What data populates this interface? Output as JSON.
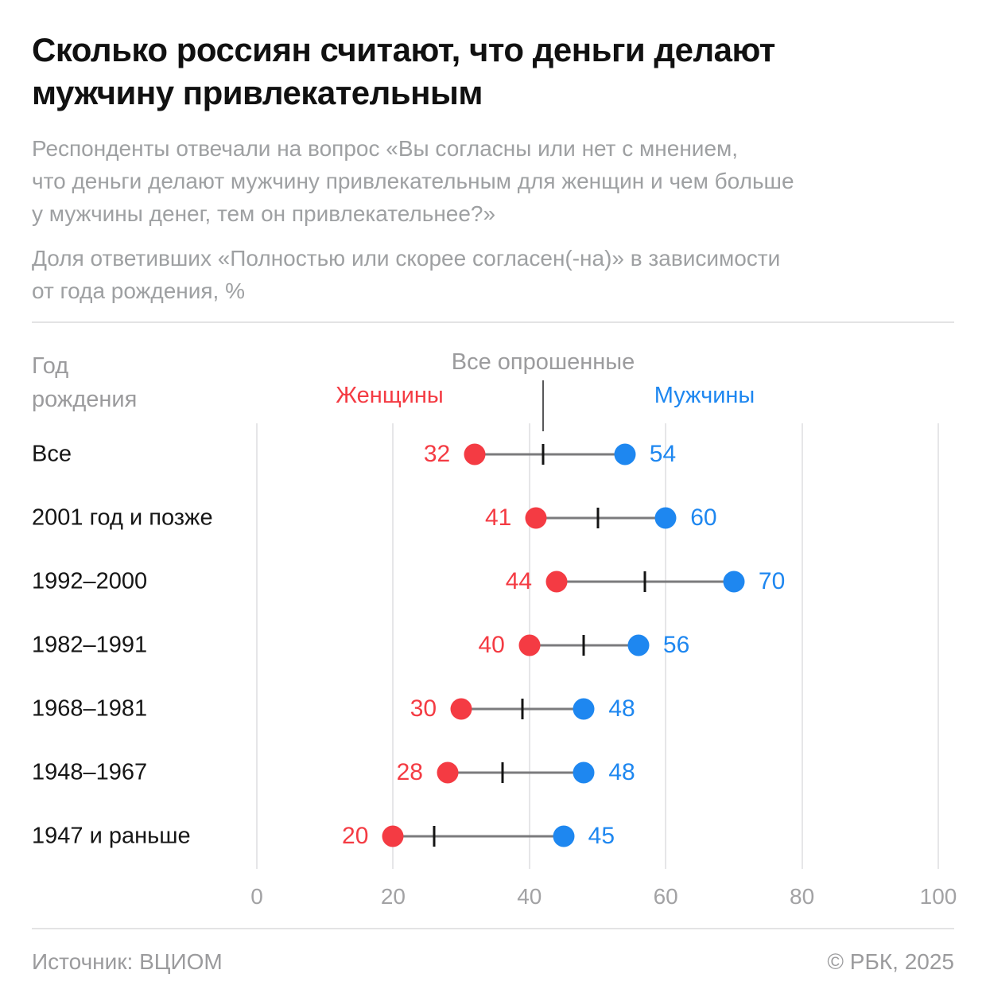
{
  "header": {
    "title": "Сколько россиян считают, что деньги делают мужчину привлекательным",
    "title_lines": [
      "Сколько россиян считают, что деньги делают",
      "мужчину привлекательным"
    ],
    "subtitle": "Респонденты отвечали на вопрос «Вы согласны или нет с мнением, что деньги делают мужчину привлекательным для женщин и чем больше у мужчины денег, тем он привлекательнее?»",
    "subtitle_lines": [
      "Респонденты отвечали на вопрос «Вы согласны или нет с мнением,",
      "что деньги делают мужчину привлекательным для женщин и чем больше",
      "у мужчины денег, тем он привлекательнее?»"
    ],
    "note": "Доля ответивших «Полностью или скорее согласен(-на)» в зависимости от года рождения, %",
    "note_lines": [
      "Доля ответивших «Полностью или скорее согласен(-на)» в зависимости",
      "от года рождения, %"
    ]
  },
  "chart_data": {
    "type": "dumbbell",
    "title": "Сколько россиян считают, что деньги делают мужчину привлекательным",
    "row_header": {
      "line1": "Год",
      "line2": "рождения"
    },
    "legend": {
      "all": "Все опрошенные",
      "women": "Женщины",
      "men": "Мужчины",
      "position": "top"
    },
    "categories": [
      "Все",
      "2001 год и позже",
      "1992–2000",
      "1982–1991",
      "1968–1981",
      "1948–1967",
      "1947 и раньше"
    ],
    "series": [
      {
        "name": "Женщины",
        "marker": "dot",
        "color": "#F43B43",
        "values": [
          32,
          41,
          44,
          40,
          30,
          28,
          20
        ]
      },
      {
        "name": "Мужчины",
        "marker": "dot",
        "color": "#1E87F0",
        "values": [
          54,
          60,
          70,
          56,
          48,
          48,
          45
        ]
      },
      {
        "name": "Все опрошенные",
        "marker": "tick",
        "color": "#141414",
        "values": [
          42,
          50,
          57,
          48,
          39,
          36,
          26
        ]
      }
    ],
    "x_axis": {
      "ticks": [
        0,
        20,
        40,
        60,
        80,
        100
      ],
      "range": [
        0,
        100
      ],
      "grid": true
    },
    "unit": "%"
  },
  "colors": {
    "women_red": "#F43B43",
    "men_blue": "#1E87F0",
    "title_text": "#111111",
    "gray_text": "#9EA0A2",
    "gridline": "#E6E6E8",
    "connector": "#7B7B7D",
    "divider": "#E3E3E4"
  },
  "footer": {
    "source": "Источник: ВЦИОМ",
    "copyright": "© РБК, 2025"
  }
}
